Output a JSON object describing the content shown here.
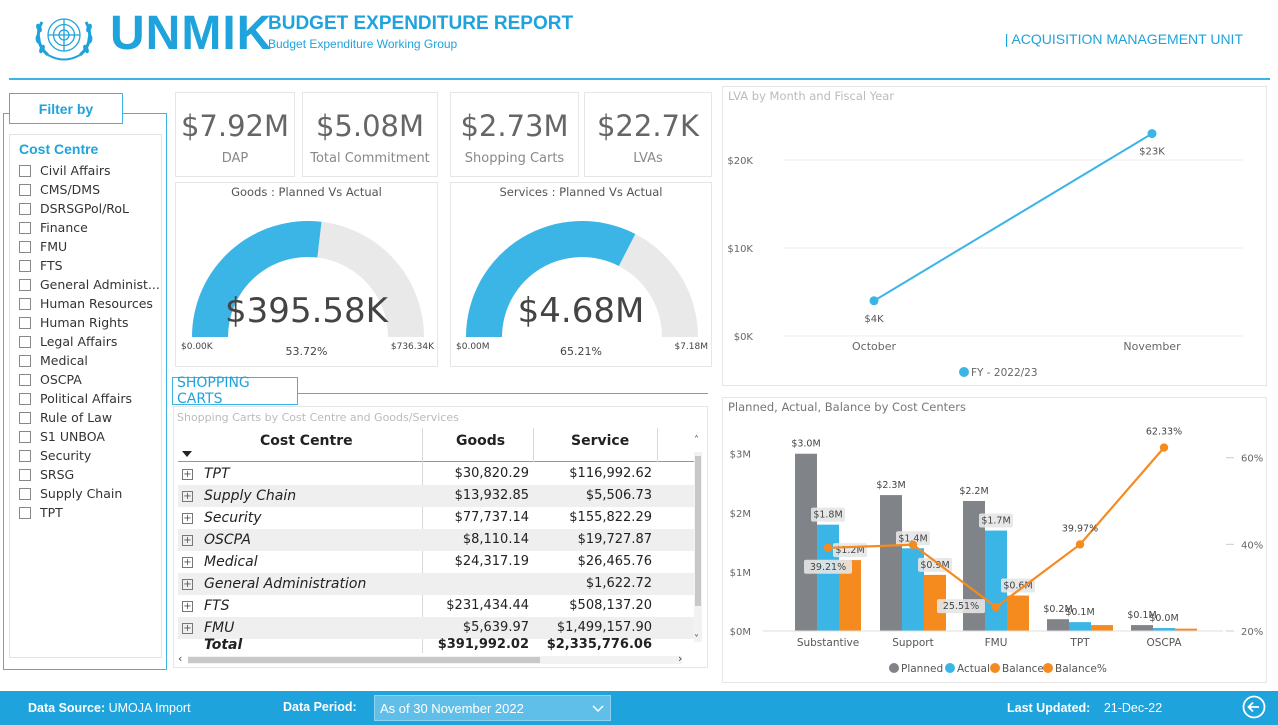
{
  "header": {
    "brand": "UNMIK",
    "title": "BUDGET EXPENDITURE REPORT",
    "subtitle": "Budget Expenditure Working Group",
    "unit": "| ACQUISITION MANAGEMENT UNIT"
  },
  "filter": {
    "heading": "Filter by",
    "group_title": "Cost Centre",
    "items": [
      "Civil Affairs",
      "CMS/DMS",
      "DSRSGPol/RoL",
      "Finance",
      "FMU",
      "FTS",
      "General Administ...",
      "Human Resources",
      "Human Rights",
      "Legal Affairs",
      "Medical",
      "OSCPA",
      "Political Affairs",
      "Rule of Law",
      "S1 UNBOA",
      "Security",
      "SRSG",
      "Supply Chain",
      "TPT"
    ]
  },
  "kpis": [
    {
      "value": "$7.92M",
      "label": "DAP"
    },
    {
      "value": "$5.08M",
      "label": "Total Commitment"
    },
    {
      "value": "$2.73M",
      "label": "Shopping Carts"
    },
    {
      "value": "$22.7K",
      "label": "LVAs"
    }
  ],
  "gauges": [
    {
      "title": "Goods : Planned Vs Actual",
      "value": "$395.58K",
      "min": "$0.00K",
      "max": "$736.34K",
      "pct": "53.72%",
      "fraction": 0.5372
    },
    {
      "title": "Services : Planned  Vs Actual",
      "value": "$4.68M",
      "min": "$0.00M",
      "max": "$7.18M",
      "pct": "65.21%",
      "fraction": 0.6521
    }
  ],
  "shopping": {
    "label": "SHOPPING CARTS",
    "caption": "Shopping Carts by Cost Centre and Goods/Services",
    "columns": [
      "Cost Centre",
      "Goods",
      "Service"
    ],
    "rows": [
      {
        "name": "TPT",
        "goods": "$30,820.29",
        "service": "$116,992.62"
      },
      {
        "name": "Supply Chain",
        "goods": "$13,932.85",
        "service": "$5,506.73"
      },
      {
        "name": "Security",
        "goods": "$77,737.14",
        "service": "$155,822.29"
      },
      {
        "name": "OSCPA",
        "goods": "$8,110.14",
        "service": "$19,727.87"
      },
      {
        "name": "Medical",
        "goods": "$24,317.19",
        "service": "$26,465.76"
      },
      {
        "name": "General Administration",
        "goods": "",
        "service": "$1,622.72"
      },
      {
        "name": "FTS",
        "goods": "$231,434.44",
        "service": "$508,137.20"
      },
      {
        "name": "FMU",
        "goods": "$5,639.97",
        "service": "$1,499,157.90"
      }
    ],
    "total": {
      "name": "Total",
      "goods": "$391,992.02",
      "service": "$2,335,776.06"
    }
  },
  "chart_data": [
    {
      "type": "line",
      "title": "LVA by Month and Fiscal Year",
      "categories": [
        "October",
        "November"
      ],
      "series": [
        {
          "name": "FY - 2022/23",
          "values": [
            4000,
            23000
          ],
          "labels": [
            "$4K",
            "$23K"
          ]
        }
      ],
      "ylim": [
        0,
        25000
      ],
      "yticks": [
        "$0K",
        "$10K",
        "$20K"
      ],
      "legend": "bottom",
      "color": "#3bb5e6"
    },
    {
      "type": "bar",
      "title": "Planned, Actual, Balance by Cost Centers",
      "categories": [
        "Substantive",
        "Support",
        "FMU",
        "TPT",
        "OSCPA"
      ],
      "series": [
        {
          "name": "Planned",
          "values": [
            3.0,
            2.3,
            2.2,
            0.2,
            0.1
          ],
          "labels": [
            "$3.0M",
            "$2.3M",
            "$2.2M",
            "$0.2M",
            "$0.1M"
          ],
          "color": "#808488"
        },
        {
          "name": "Actual",
          "values": [
            1.8,
            1.4,
            1.7,
            0.15,
            0.05
          ],
          "labels": [
            "$1.8M",
            "$1.4M",
            "$1.7M",
            "$0.1M",
            "$0.0M"
          ],
          "color": "#3bb5e6"
        },
        {
          "name": "Balance",
          "values": [
            1.2,
            0.95,
            0.6,
            0.1,
            0.04
          ],
          "labels": [
            "$1.2M",
            "$0.9M",
            "$0.6M",
            "",
            ""
          ],
          "color": "#f58a1f"
        },
        {
          "name": "Balance%",
          "values": [
            39.21,
            39.9,
            25.51,
            39.97,
            62.33
          ],
          "labels": [
            "39.21%",
            "",
            "25.51%",
            "39.97%",
            "62.33%"
          ],
          "color": "#f58a1f",
          "axis": "right"
        }
      ],
      "ylim": [
        0,
        3.3
      ],
      "yticks": [
        "$0M",
        "$1M",
        "$2M",
        "$3M"
      ],
      "y2ticks": [
        "20%",
        "40%",
        "60%"
      ],
      "y2lim": [
        20,
        65
      ],
      "legend": "bottom"
    }
  ],
  "footer": {
    "source_label": "Data Source:",
    "source_value": "UMOJA Import",
    "period_label": "Data Period:",
    "period_value": "As of 30 November 2022",
    "updated_label": "Last Updated:",
    "updated_value": "21-Dec-22"
  }
}
